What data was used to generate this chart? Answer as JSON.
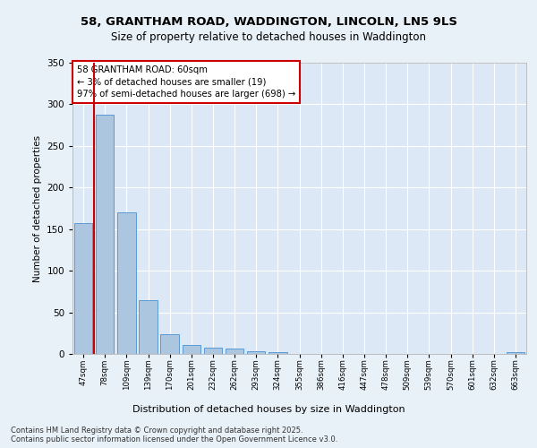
{
  "title_line1": "58, GRANTHAM ROAD, WADDINGTON, LINCOLN, LN5 9LS",
  "title_line2": "Size of property relative to detached houses in Waddington",
  "xlabel": "Distribution of detached houses by size in Waddington",
  "ylabel": "Number of detached properties",
  "categories": [
    "47sqm",
    "78sqm",
    "109sqm",
    "139sqm",
    "170sqm",
    "201sqm",
    "232sqm",
    "262sqm",
    "293sqm",
    "324sqm",
    "355sqm",
    "386sqm",
    "416sqm",
    "447sqm",
    "478sqm",
    "509sqm",
    "539sqm",
    "570sqm",
    "601sqm",
    "632sqm",
    "663sqm"
  ],
  "values": [
    157,
    288,
    170,
    65,
    24,
    11,
    8,
    6,
    3,
    2,
    0,
    0,
    0,
    0,
    0,
    0,
    0,
    0,
    0,
    0,
    2
  ],
  "bar_color": "#adc6e0",
  "bar_edge_color": "#5b9bd5",
  "annotation_box_text": "58 GRANTHAM ROAD: 60sqm\n← 3% of detached houses are smaller (19)\n97% of semi-detached houses are larger (698) →",
  "annotation_box_color": "#ffffff",
  "annotation_box_edge_color": "#cc0000",
  "background_color": "#e8f0f8",
  "plot_bg_color": "#dce8f5",
  "grid_color": "#ffffff",
  "footer_text": "Contains HM Land Registry data © Crown copyright and database right 2025.\nContains public sector information licensed under the Open Government Licence v3.0.",
  "ylim": [
    0,
    350
  ],
  "yticks": [
    0,
    50,
    100,
    150,
    200,
    250,
    300,
    350
  ],
  "red_line_color": "#cc0000"
}
